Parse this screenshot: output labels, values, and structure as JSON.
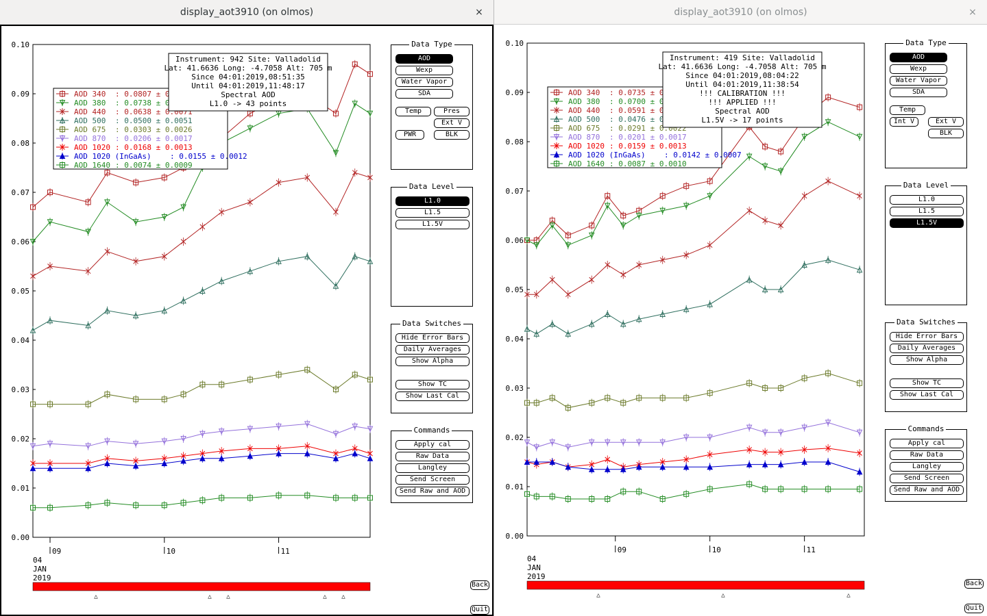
{
  "windows": [
    {
      "title": "display_aot3910 (on olmos)",
      "close": "×",
      "info": [
        "Instrument: 942 Site: Valladolid",
        "Lat: 41.6636 Long: -4.7058 Alt: 705 m",
        "Since 04:01:2019,08:51:35",
        "Until 04:01:2019,11:48:17",
        "Spectral AOD",
        "L1.0 -> 43 points"
      ],
      "legend": [
        {
          "label": "AOD 340",
          "value": ": 0.0807 ± 0.0",
          "color": "#b22222",
          "marker": "square"
        },
        {
          "label": "AOD 380",
          "value": ": 0.0738 ± 0.0",
          "color": "#228b22",
          "marker": "tridown"
        },
        {
          "label": "AOD 440",
          "value": ": 0.0638 ± 0.0071",
          "color": "#b22222",
          "marker": "x"
        },
        {
          "label": "AOD 500",
          "value": ": 0.0500 ± 0.0051",
          "color": "#2f6f5f",
          "marker": "triup"
        },
        {
          "label": "AOD 675",
          "value": ": 0.0303 ± 0.0026",
          "color": "#6b7a2a",
          "marker": "square"
        },
        {
          "label": "AOD 870",
          "value": ": 0.0206 ± 0.0017",
          "color": "#9370db",
          "marker": "tridown"
        },
        {
          "label": "AOD 1020",
          "value": ": 0.0168 ± 0.0013",
          "color": "#ee0000",
          "marker": "x"
        },
        {
          "label": "AOD 1020 (InGaAs)",
          "value": ": 0.0155 ± 0.0012",
          "color": "#0000cc",
          "marker": "triup"
        },
        {
          "label": "AOD 1640",
          "value": ": 0.0074 ± 0.0009",
          "color": "#228b22",
          "marker": "square"
        }
      ],
      "level_selected": "L1.0",
      "right_enabled_extra": [
        "PWR"
      ]
    },
    {
      "title": "display_aot3910 (on olmos)",
      "close": "×",
      "info": [
        "Instrument: 419 Site: Valladolid",
        "Lat: 41.6636 Long: -4.7058 Alt: 705 m",
        "Since 04:01:2019,08:04:22",
        "Until 04:01:2019,11:38:54",
        "!!! CALIBRATION !!!",
        "!!!   APPLIED   !!!",
        "Spectral AOD",
        "L1.5V -> 17 points"
      ],
      "legend": [
        {
          "label": "AOD 340",
          "value": ": 0.0735 ± 0.0",
          "color": "#b22222",
          "marker": "square"
        },
        {
          "label": "AOD 380",
          "value": ": 0.0700 ± 0.0",
          "color": "#228b22",
          "marker": "tridown"
        },
        {
          "label": "AOD 440",
          "value": ": 0.0591 ± 0.0",
          "color": "#b22222",
          "marker": "x"
        },
        {
          "label": "AOD 500",
          "value": ": 0.0476 ± 0.0",
          "color": "#2f6f5f",
          "marker": "triup"
        },
        {
          "label": "AOD 675",
          "value": ": 0.0291 ± 0.0022",
          "color": "#6b7a2a",
          "marker": "square"
        },
        {
          "label": "AOD 870",
          "value": ": 0.0201 ± 0.0017",
          "color": "#9370db",
          "marker": "tridown"
        },
        {
          "label": "AOD 1020",
          "value": ": 0.0159 ± 0.0013",
          "color": "#ee0000",
          "marker": "x"
        },
        {
          "label": "AOD 1020 (InGaAs)",
          "value": ": 0.0142 ± 0.0007",
          "color": "#0000cc",
          "marker": "triup"
        },
        {
          "label": "AOD 1640",
          "value": ": 0.0087 ± 0.0010",
          "color": "#228b22",
          "marker": "square"
        }
      ],
      "level_selected": "L1.5V",
      "right_enabled_extra": [
        "Int V"
      ]
    }
  ],
  "panels": {
    "data_type": "Data Type",
    "data_level": "Data Level",
    "data_switches": "Data Switches",
    "commands": "Commands"
  },
  "buttons": {
    "aod": "AOD",
    "wexp": "Wexp",
    "water_vapor": "Water Vapor",
    "sda": "SDA",
    "temp": "Temp",
    "pres": "Pres",
    "ext_v": "Ext V",
    "int_v": "Int V",
    "pwr": "PWR",
    "blk": "BLK",
    "levels": [
      "L1.0",
      "L1.5",
      "L1.5V"
    ],
    "hide_error_bars": "Hide Error Bars",
    "daily_averages": "Daily Averages",
    "show_alpha": "Show Alpha",
    "show_tc": "Show TC",
    "show_last_cal": "Show Last Cal",
    "apply_cal": "Apply cal",
    "raw_data": "Raw Data",
    "langley": "Langley",
    "send_screen": "Send Screen",
    "send_raw_aod": "Send Raw and AOD",
    "back": "Back",
    "quit": "Quit"
  },
  "axis": {
    "y_ticks": [
      "0.10",
      "0.09",
      "0.08",
      "0.07",
      "0.06",
      "0.05",
      "0.04",
      "0.03",
      "0.02",
      "0.01",
      "0.00"
    ],
    "x_ticks": [
      "09",
      "10",
      "11"
    ],
    "date_day": "04",
    "date_month": "JAN",
    "date_year": "2019"
  },
  "chart_data": [
    {
      "type": "line",
      "ylim": [
        0,
        0.1
      ],
      "xlim": [
        "08:51",
        "11:48"
      ],
      "x_ticks": [
        "09",
        "10",
        "11"
      ],
      "series": [
        {
          "name": "AOD 340",
          "x": [
            "08:51",
            "09:00",
            "09:20",
            "09:30",
            "09:45",
            "10:00",
            "10:10",
            "10:20",
            "10:30",
            "10:45",
            "11:00",
            "11:15",
            "11:30",
            "11:40",
            "11:48"
          ],
          "values": [
            0.067,
            0.07,
            0.068,
            0.074,
            0.072,
            0.073,
            0.075,
            0.078,
            0.081,
            0.086,
            0.089,
            0.09,
            0.086,
            0.096,
            0.094
          ]
        },
        {
          "name": "AOD 380",
          "x": [
            "08:51",
            "09:00",
            "09:20",
            "09:30",
            "09:45",
            "10:00",
            "10:10",
            "10:20",
            "10:30",
            "10:45",
            "11:00",
            "11:15",
            "11:30",
            "11:40",
            "11:48"
          ],
          "values": [
            0.06,
            0.064,
            0.062,
            0.068,
            0.064,
            0.065,
            0.067,
            0.075,
            0.08,
            0.083,
            0.086,
            0.087,
            0.078,
            0.088,
            0.086
          ]
        },
        {
          "name": "AOD 440",
          "x": [
            "08:51",
            "09:00",
            "09:20",
            "09:30",
            "09:45",
            "10:00",
            "10:10",
            "10:20",
            "10:30",
            "10:45",
            "11:00",
            "11:15",
            "11:30",
            "11:40",
            "11:48"
          ],
          "values": [
            0.053,
            0.055,
            0.054,
            0.058,
            0.056,
            0.057,
            0.06,
            0.063,
            0.066,
            0.068,
            0.072,
            0.073,
            0.066,
            0.074,
            0.073
          ]
        },
        {
          "name": "AOD 500",
          "x": [
            "08:51",
            "09:00",
            "09:20",
            "09:30",
            "09:45",
            "10:00",
            "10:10",
            "10:20",
            "10:30",
            "10:45",
            "11:00",
            "11:15",
            "11:30",
            "11:40",
            "11:48"
          ],
          "values": [
            0.042,
            0.044,
            0.043,
            0.046,
            0.045,
            0.046,
            0.048,
            0.05,
            0.052,
            0.054,
            0.056,
            0.057,
            0.051,
            0.057,
            0.056
          ]
        },
        {
          "name": "AOD 675",
          "x": [
            "08:51",
            "09:00",
            "09:20",
            "09:30",
            "09:45",
            "10:00",
            "10:10",
            "10:20",
            "10:30",
            "10:45",
            "11:00",
            "11:15",
            "11:30",
            "11:40",
            "11:48"
          ],
          "values": [
            0.027,
            0.027,
            0.027,
            0.029,
            0.028,
            0.028,
            0.029,
            0.031,
            0.031,
            0.032,
            0.033,
            0.034,
            0.03,
            0.033,
            0.032
          ]
        },
        {
          "name": "AOD 870",
          "x": [
            "08:51",
            "09:00",
            "09:20",
            "09:30",
            "09:45",
            "10:00",
            "10:10",
            "10:20",
            "10:30",
            "10:45",
            "11:00",
            "11:15",
            "11:30",
            "11:40",
            "11:48"
          ],
          "values": [
            0.0185,
            0.019,
            0.0185,
            0.0195,
            0.019,
            0.0195,
            0.02,
            0.021,
            0.0215,
            0.022,
            0.0225,
            0.023,
            0.021,
            0.0225,
            0.022
          ]
        },
        {
          "name": "AOD 1020",
          "x": [
            "08:51",
            "09:00",
            "09:20",
            "09:30",
            "09:45",
            "10:00",
            "10:10",
            "10:20",
            "10:30",
            "10:45",
            "11:00",
            "11:15",
            "11:30",
            "11:40",
            "11:48"
          ],
          "values": [
            0.015,
            0.015,
            0.015,
            0.016,
            0.0155,
            0.016,
            0.0165,
            0.017,
            0.0175,
            0.018,
            0.018,
            0.0185,
            0.017,
            0.018,
            0.017
          ]
        },
        {
          "name": "AOD 1020 (InGaAs)",
          "x": [
            "08:51",
            "09:00",
            "09:20",
            "09:30",
            "09:45",
            "10:00",
            "10:10",
            "10:20",
            "10:30",
            "10:45",
            "11:00",
            "11:15",
            "11:30",
            "11:40",
            "11:48"
          ],
          "values": [
            0.014,
            0.014,
            0.014,
            0.015,
            0.0145,
            0.015,
            0.0155,
            0.016,
            0.016,
            0.0165,
            0.017,
            0.017,
            0.016,
            0.017,
            0.016
          ]
        },
        {
          "name": "AOD 1640",
          "x": [
            "08:51",
            "09:00",
            "09:20",
            "09:30",
            "09:45",
            "10:00",
            "10:10",
            "10:20",
            "10:30",
            "10:45",
            "11:00",
            "11:15",
            "11:30",
            "11:40",
            "11:48"
          ],
          "values": [
            0.006,
            0.006,
            0.0065,
            0.007,
            0.0065,
            0.0065,
            0.007,
            0.0075,
            0.008,
            0.008,
            0.0085,
            0.0085,
            0.008,
            0.008,
            0.008
          ]
        }
      ]
    },
    {
      "type": "line",
      "ylim": [
        0,
        0.1
      ],
      "xlim": [
        "08:04",
        "11:38"
      ],
      "x_ticks": [
        "09",
        "10",
        "11"
      ],
      "series": [
        {
          "name": "AOD 340",
          "x": [
            "08:04",
            "08:10",
            "08:20",
            "08:30",
            "08:45",
            "08:55",
            "09:05",
            "09:15",
            "09:30",
            "09:45",
            "10:00",
            "10:25",
            "10:35",
            "10:45",
            "11:00",
            "11:15",
            "11:35"
          ],
          "values": [
            0.06,
            0.06,
            0.064,
            0.061,
            0.063,
            0.069,
            0.065,
            0.066,
            0.069,
            0.071,
            0.072,
            0.083,
            0.079,
            0.078,
            0.085,
            0.089,
            0.087
          ]
        },
        {
          "name": "AOD 380",
          "x": [
            "08:04",
            "08:10",
            "08:20",
            "08:30",
            "08:45",
            "08:55",
            "09:05",
            "09:15",
            "09:30",
            "09:45",
            "10:00",
            "10:25",
            "10:35",
            "10:45",
            "11:00",
            "11:15",
            "11:35"
          ],
          "values": [
            0.06,
            0.059,
            0.063,
            0.059,
            0.061,
            0.067,
            0.063,
            0.065,
            0.066,
            0.067,
            0.069,
            0.077,
            0.075,
            0.074,
            0.081,
            0.084,
            0.081
          ]
        },
        {
          "name": "AOD 440",
          "x": [
            "08:04",
            "08:10",
            "08:20",
            "08:30",
            "08:45",
            "08:55",
            "09:05",
            "09:15",
            "09:30",
            "09:45",
            "10:00",
            "10:25",
            "10:35",
            "10:45",
            "11:00",
            "11:15",
            "11:35"
          ],
          "values": [
            0.049,
            0.049,
            0.052,
            0.049,
            0.052,
            0.055,
            0.053,
            0.055,
            0.056,
            0.057,
            0.059,
            0.066,
            0.064,
            0.063,
            0.069,
            0.072,
            0.069
          ]
        },
        {
          "name": "AOD 500",
          "x": [
            "08:04",
            "08:10",
            "08:20",
            "08:30",
            "08:45",
            "08:55",
            "09:05",
            "09:15",
            "09:30",
            "09:45",
            "10:00",
            "10:25",
            "10:35",
            "10:45",
            "11:00",
            "11:15",
            "11:35"
          ],
          "values": [
            0.042,
            0.041,
            0.043,
            0.041,
            0.043,
            0.045,
            0.043,
            0.044,
            0.045,
            0.046,
            0.047,
            0.052,
            0.05,
            0.05,
            0.055,
            0.056,
            0.054
          ]
        },
        {
          "name": "AOD 675",
          "x": [
            "08:04",
            "08:10",
            "08:20",
            "08:30",
            "08:45",
            "08:55",
            "09:05",
            "09:15",
            "09:30",
            "09:45",
            "10:00",
            "10:25",
            "10:35",
            "10:45",
            "11:00",
            "11:15",
            "11:35"
          ],
          "values": [
            0.027,
            0.027,
            0.028,
            0.026,
            0.027,
            0.028,
            0.027,
            0.028,
            0.028,
            0.028,
            0.029,
            0.031,
            0.03,
            0.03,
            0.032,
            0.033,
            0.031
          ]
        },
        {
          "name": "AOD 870",
          "x": [
            "08:04",
            "08:10",
            "08:20",
            "08:30",
            "08:45",
            "08:55",
            "09:05",
            "09:15",
            "09:30",
            "09:45",
            "10:00",
            "10:25",
            "10:35",
            "10:45",
            "11:00",
            "11:15",
            "11:35"
          ],
          "values": [
            0.019,
            0.018,
            0.019,
            0.018,
            0.019,
            0.019,
            0.019,
            0.019,
            0.019,
            0.02,
            0.02,
            0.022,
            0.021,
            0.021,
            0.022,
            0.023,
            0.021
          ]
        },
        {
          "name": "AOD 1020",
          "x": [
            "08:04",
            "08:10",
            "08:20",
            "08:30",
            "08:45",
            "08:55",
            "09:05",
            "09:15",
            "09:30",
            "09:45",
            "10:00",
            "10:25",
            "10:35",
            "10:45",
            "11:00",
            "11:15",
            "11:35"
          ],
          "values": [
            0.015,
            0.0145,
            0.015,
            0.014,
            0.0145,
            0.0155,
            0.014,
            0.0145,
            0.015,
            0.0155,
            0.0165,
            0.0175,
            0.017,
            0.017,
            0.0175,
            0.0178,
            0.0168
          ]
        },
        {
          "name": "AOD 1020 (InGaAs)",
          "x": [
            "08:04",
            "08:10",
            "08:20",
            "08:30",
            "08:45",
            "08:55",
            "09:05",
            "09:15",
            "09:30",
            "09:45",
            "10:00",
            "10:25",
            "10:35",
            "10:45",
            "11:00",
            "11:15",
            "11:35"
          ],
          "values": [
            0.015,
            0.015,
            0.015,
            0.014,
            0.0135,
            0.0135,
            0.0135,
            0.014,
            0.014,
            0.014,
            0.014,
            0.0145,
            0.0145,
            0.0145,
            0.015,
            0.015,
            0.013
          ]
        },
        {
          "name": "AOD 1640",
          "x": [
            "08:04",
            "08:10",
            "08:20",
            "08:30",
            "08:45",
            "08:55",
            "09:05",
            "09:15",
            "09:30",
            "09:45",
            "10:00",
            "10:25",
            "10:35",
            "10:45",
            "11:00",
            "11:15",
            "11:35"
          ],
          "values": [
            0.0085,
            0.008,
            0.008,
            0.0075,
            0.0075,
            0.0075,
            0.009,
            0.009,
            0.0075,
            0.0085,
            0.0095,
            0.0105,
            0.0095,
            0.0095,
            0.0095,
            0.0095,
            0.0095
          ]
        }
      ]
    }
  ]
}
